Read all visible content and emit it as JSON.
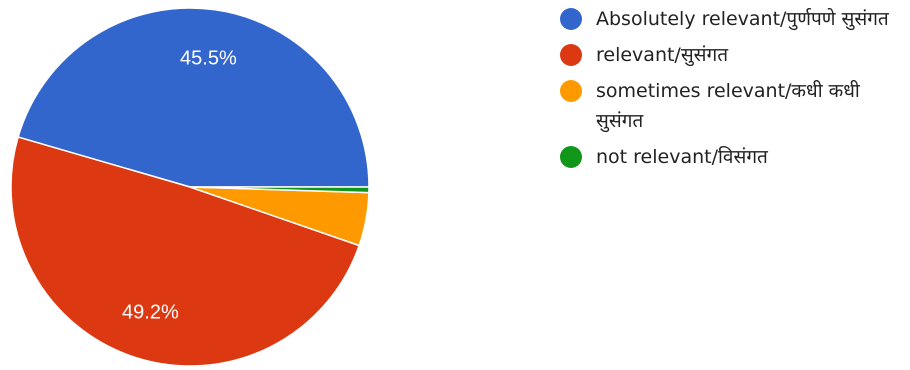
{
  "chart_data": {
    "type": "pie",
    "categories": [
      "Absolutely relevant/पुर्णपणे सुसंगत",
      "relevant/सुसंगत",
      "sometimes relevant/कधी कधी सुसंगत",
      "not relevant/विसंगत"
    ],
    "values": [
      45.5,
      49.2,
      4.8,
      0.5
    ],
    "colors": [
      "#3366cc",
      "#dc3912",
      "#ff9900",
      "#109618"
    ],
    "data_labels": [
      "45.5%",
      "49.2%",
      "",
      ""
    ],
    "legend_position": "right"
  }
}
